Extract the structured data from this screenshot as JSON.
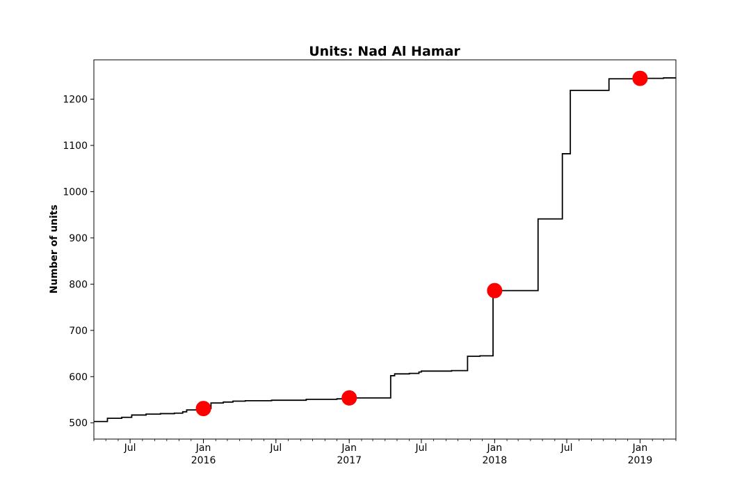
{
  "chart_data": {
    "type": "line",
    "title": "Units: Nad Al Hamar",
    "xlabel": "",
    "ylabel": "Number of units",
    "x_axis": "date",
    "xlim": [
      "2015-04-01",
      "2019-04-01"
    ],
    "ylim": [
      465,
      1285
    ],
    "grid": false,
    "legend": "none",
    "colors": {
      "line": "#000000",
      "markers": "#ff0000"
    },
    "yticks": [
      {
        "value": 500,
        "label": "500"
      },
      {
        "value": 600,
        "label": "600"
      },
      {
        "value": 700,
        "label": "700"
      },
      {
        "value": 800,
        "label": "800"
      },
      {
        "value": 900,
        "label": "900"
      },
      {
        "value": 1000,
        "label": "1000"
      },
      {
        "value": 1100,
        "label": "1100"
      },
      {
        "value": 1200,
        "label": "1200"
      }
    ],
    "xticks": [
      {
        "date": "2015-07-01",
        "label": "Jul",
        "sublabel": ""
      },
      {
        "date": "2016-01-01",
        "label": "Jan",
        "sublabel": "2016"
      },
      {
        "date": "2016-07-01",
        "label": "Jul",
        "sublabel": ""
      },
      {
        "date": "2017-01-01",
        "label": "Jan",
        "sublabel": "2017"
      },
      {
        "date": "2017-07-01",
        "label": "Jul",
        "sublabel": ""
      },
      {
        "date": "2018-01-01",
        "label": "Jan",
        "sublabel": "2018"
      },
      {
        "date": "2018-07-01",
        "label": "Jul",
        "sublabel": ""
      },
      {
        "date": "2019-01-01",
        "label": "Jan",
        "sublabel": "2019"
      }
    ],
    "series": [
      {
        "style": "step",
        "points": [
          {
            "date": "2015-04-01",
            "value": 503
          },
          {
            "date": "2015-05-05",
            "value": 510
          },
          {
            "date": "2015-06-10",
            "value": 512
          },
          {
            "date": "2015-07-05",
            "value": 517
          },
          {
            "date": "2015-08-10",
            "value": 519
          },
          {
            "date": "2015-09-15",
            "value": 520
          },
          {
            "date": "2015-10-20",
            "value": 521
          },
          {
            "date": "2015-11-10",
            "value": 524
          },
          {
            "date": "2015-11-20",
            "value": 528
          },
          {
            "date": "2015-12-15",
            "value": 529
          },
          {
            "date": "2016-01-01",
            "value": 531
          },
          {
            "date": "2016-01-20",
            "value": 543
          },
          {
            "date": "2016-02-20",
            "value": 545
          },
          {
            "date": "2016-03-15",
            "value": 547
          },
          {
            "date": "2016-04-15",
            "value": 548
          },
          {
            "date": "2016-06-20",
            "value": 549
          },
          {
            "date": "2016-09-15",
            "value": 551
          },
          {
            "date": "2016-12-01",
            "value": 552
          },
          {
            "date": "2017-01-01",
            "value": 554
          },
          {
            "date": "2017-04-15",
            "value": 602
          },
          {
            "date": "2017-04-25",
            "value": 606
          },
          {
            "date": "2017-06-01",
            "value": 607
          },
          {
            "date": "2017-06-25",
            "value": 610
          },
          {
            "date": "2017-07-01",
            "value": 612
          },
          {
            "date": "2017-09-15",
            "value": 613
          },
          {
            "date": "2017-10-25",
            "value": 644
          },
          {
            "date": "2017-11-25",
            "value": 645
          },
          {
            "date": "2017-12-28",
            "value": 786
          },
          {
            "date": "2018-04-20",
            "value": 941
          },
          {
            "date": "2018-06-20",
            "value": 1082
          },
          {
            "date": "2018-07-10",
            "value": 1219
          },
          {
            "date": "2018-10-15",
            "value": 1244
          },
          {
            "date": "2019-01-01",
            "value": 1245
          },
          {
            "date": "2019-03-01",
            "value": 1246
          },
          {
            "date": "2019-04-01",
            "value": 1246
          }
        ]
      },
      {
        "style": "markers",
        "points": [
          {
            "date": "2016-01-01",
            "value": 531
          },
          {
            "date": "2017-01-01",
            "value": 554
          },
          {
            "date": "2018-01-01",
            "value": 786
          },
          {
            "date": "2019-01-01",
            "value": 1245
          }
        ]
      }
    ]
  }
}
